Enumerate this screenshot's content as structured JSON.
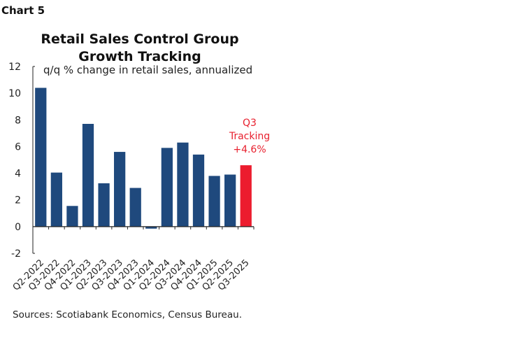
{
  "header": {
    "label": "Chart 5"
  },
  "chart_data": {
    "type": "bar",
    "title": [
      "Retail Sales Control Group",
      "Growth Tracking"
    ],
    "subtitle": "q/q % change in retail sales, annualized",
    "categories": [
      "Q2-2022",
      "Q3-2022",
      "Q4-2022",
      "Q1-2023",
      "Q2-2023",
      "Q3-2023",
      "Q4-2023",
      "Q1-2024",
      "Q2-2024",
      "Q3-2024",
      "Q4-2024",
      "Q1-2025",
      "Q2-2025",
      "Q3-2025"
    ],
    "values": [
      10.4,
      4.05,
      1.55,
      7.7,
      3.25,
      5.6,
      2.9,
      -0.15,
      5.9,
      6.3,
      5.4,
      3.8,
      3.9,
      4.6
    ],
    "colors": {
      "actual": "#1f497d",
      "tracking": "#ec1c2e"
    },
    "highlight_index": 13,
    "ylim": [
      -2,
      12
    ],
    "yticks": [
      "-2",
      "0",
      "2",
      "4",
      "6",
      "8",
      "10",
      "12"
    ],
    "grid": false,
    "annotation": [
      "Q3",
      "Tracking",
      "+4.6%"
    ],
    "source": "Sources: Scotiabank Economics, Census Bureau."
  }
}
